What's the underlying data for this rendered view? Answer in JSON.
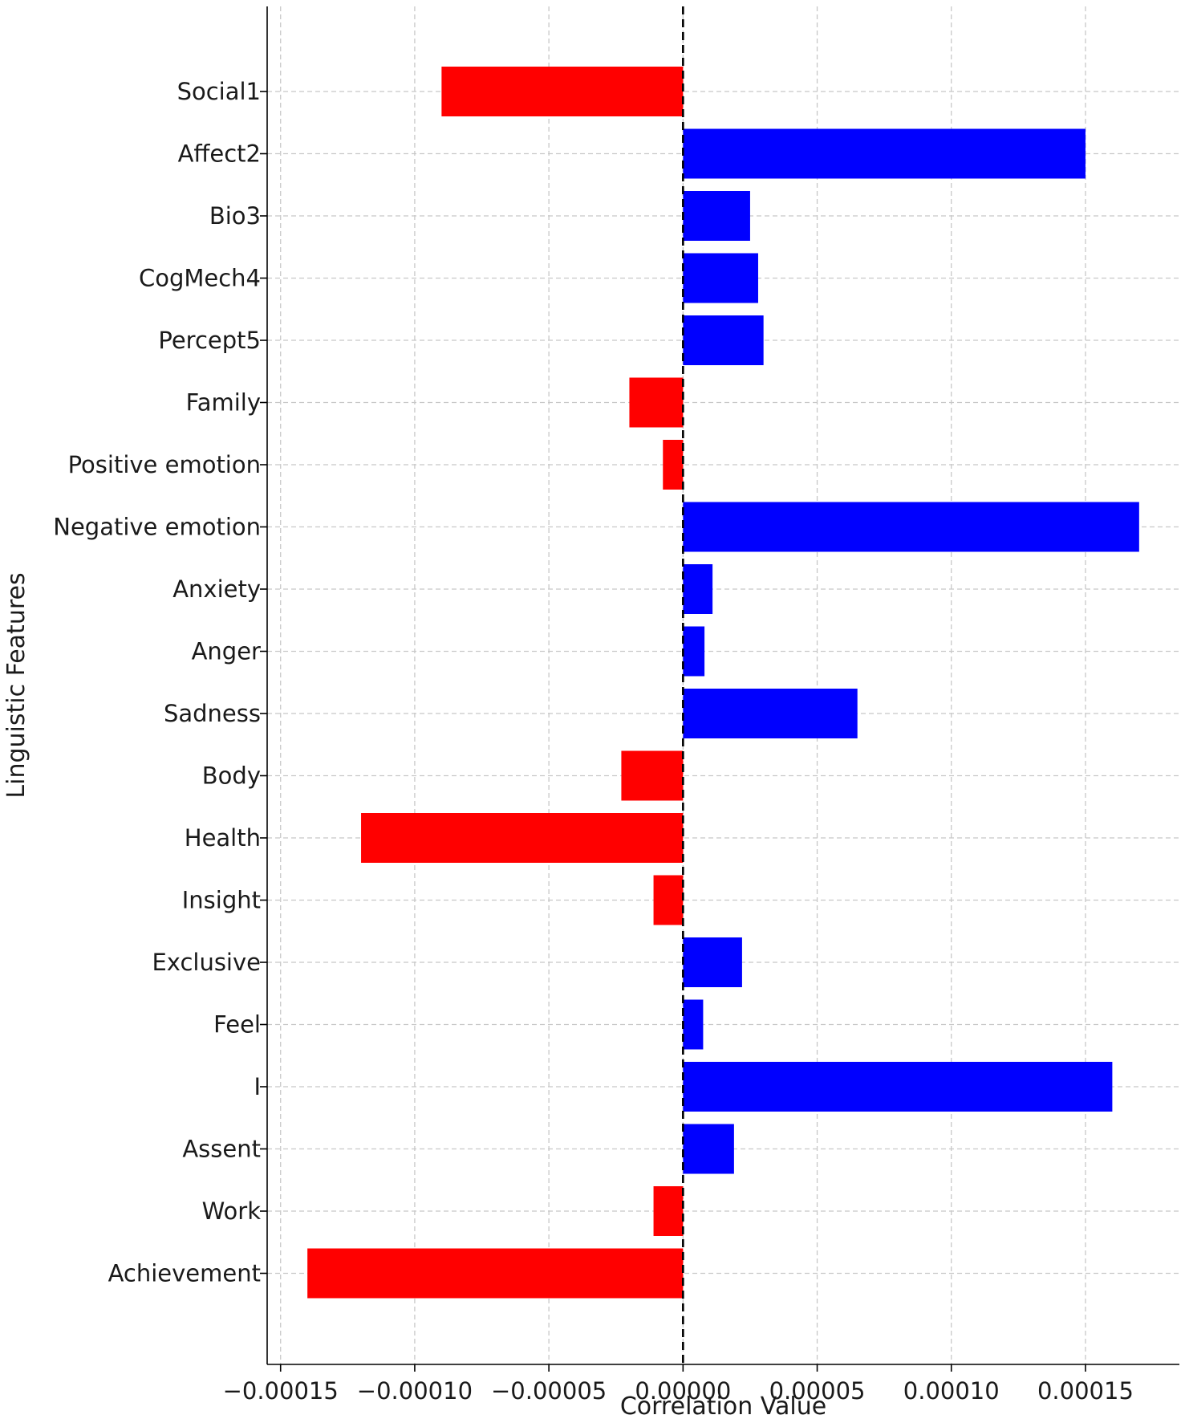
{
  "chart_data": {
    "type": "bar",
    "orientation": "horizontal",
    "title": "",
    "xlabel": "Correlation Value",
    "ylabel": "Linguistic Features",
    "categories": [
      "Social1",
      "Affect2",
      "Bio3",
      "CogMech4",
      "Percept5",
      "Family",
      "Positive emotion",
      "Negative emotion",
      "Anxiety",
      "Anger",
      "Sadness",
      "Body",
      "Health",
      "Insight",
      "Exclusive",
      "Feel",
      "I",
      "Assent",
      "Work",
      "Achievement"
    ],
    "values": [
      -9e-05,
      0.00015,
      2.5e-05,
      2.8e-05,
      3e-05,
      -2e-05,
      -7.5e-06,
      0.00017,
      1.1e-05,
      8e-06,
      6.5e-05,
      -2.3e-05,
      -0.00012,
      -1.1e-05,
      2.2e-05,
      7.5e-06,
      0.00016,
      1.9e-05,
      -1.1e-05,
      -0.00014
    ],
    "xlim": [
      -0.000155,
      0.000185
    ],
    "xticks": [
      -0.00015,
      -0.0001,
      -5e-05,
      0.0,
      5e-05,
      0.0001,
      0.00015
    ],
    "xtick_labels": [
      "−0.00015",
      "−0.00010",
      "−0.00005",
      "0.00000",
      "0.00005",
      "0.00010",
      "0.00015"
    ],
    "grid": true,
    "reference_line": 0,
    "colors": {
      "positive": "#0000ff",
      "negative": "#ff0000",
      "grid": "#c8c8c8",
      "axis": "#000000"
    }
  }
}
